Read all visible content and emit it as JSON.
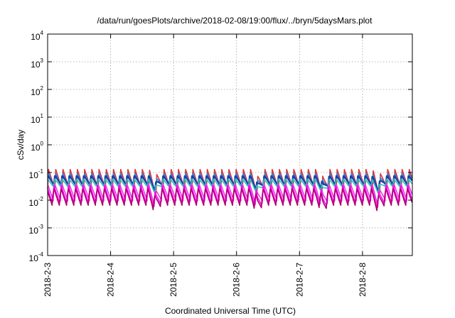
{
  "chart_data": {
    "type": "line",
    "title": "/data/run/goesPlots/archive/2018-02-08/19:00/flux/../bryn/5daysMars.plot",
    "xlabel": "Coordinated Universal Time (UTC)",
    "ylabel": "cSv/day",
    "yscale": "log",
    "ylim": [
      0.0001,
      10000
    ],
    "y_ticks": [
      {
        "base": "10",
        "exp": "4"
      },
      {
        "base": "10",
        "exp": "3"
      },
      {
        "base": "10",
        "exp": "2"
      },
      {
        "base": "10",
        "exp": "1"
      },
      {
        "base": "10",
        "exp": "0"
      },
      {
        "base": "10",
        "exp": "-1"
      },
      {
        "base": "10",
        "exp": "-2"
      },
      {
        "base": "10",
        "exp": "-3"
      },
      {
        "base": "10",
        "exp": "-4"
      }
    ],
    "xlim": [
      "2018-02-03",
      "2018-02-08 19:00"
    ],
    "x_ticks": [
      "2018-2-3",
      "2018-2-4",
      "2018-2-5",
      "2018-2-6",
      "2018-2-7",
      "2018-2-8"
    ],
    "grid": true,
    "legend": "none",
    "pattern": {
      "period_hours": 2.75,
      "shape": "sawtooth",
      "dips_near": [
        "2018-02-04 17:00",
        "2018-02-06 08:00",
        "2018-02-07 09:00",
        "2018-02-08 06:00"
      ]
    },
    "series": [
      {
        "color": "#d63a3a",
        "peak": 0.13,
        "trough": 0.025
      },
      {
        "color": "#3a7bd5",
        "peak": 0.1,
        "trough": 0.03
      },
      {
        "color": "#1f3fa8",
        "peak": 0.08,
        "trough": 0.035
      },
      {
        "color": "#2ec4b6",
        "peak": 0.06,
        "trough": 0.03
      },
      {
        "color": "#e040e0",
        "peak": 0.045,
        "trough": 0.01
      },
      {
        "color": "#ff00ff",
        "peak": 0.035,
        "trough": 0.007
      },
      {
        "color": "#b0006b",
        "peak": 0.03,
        "trough": 0.006
      }
    ]
  }
}
